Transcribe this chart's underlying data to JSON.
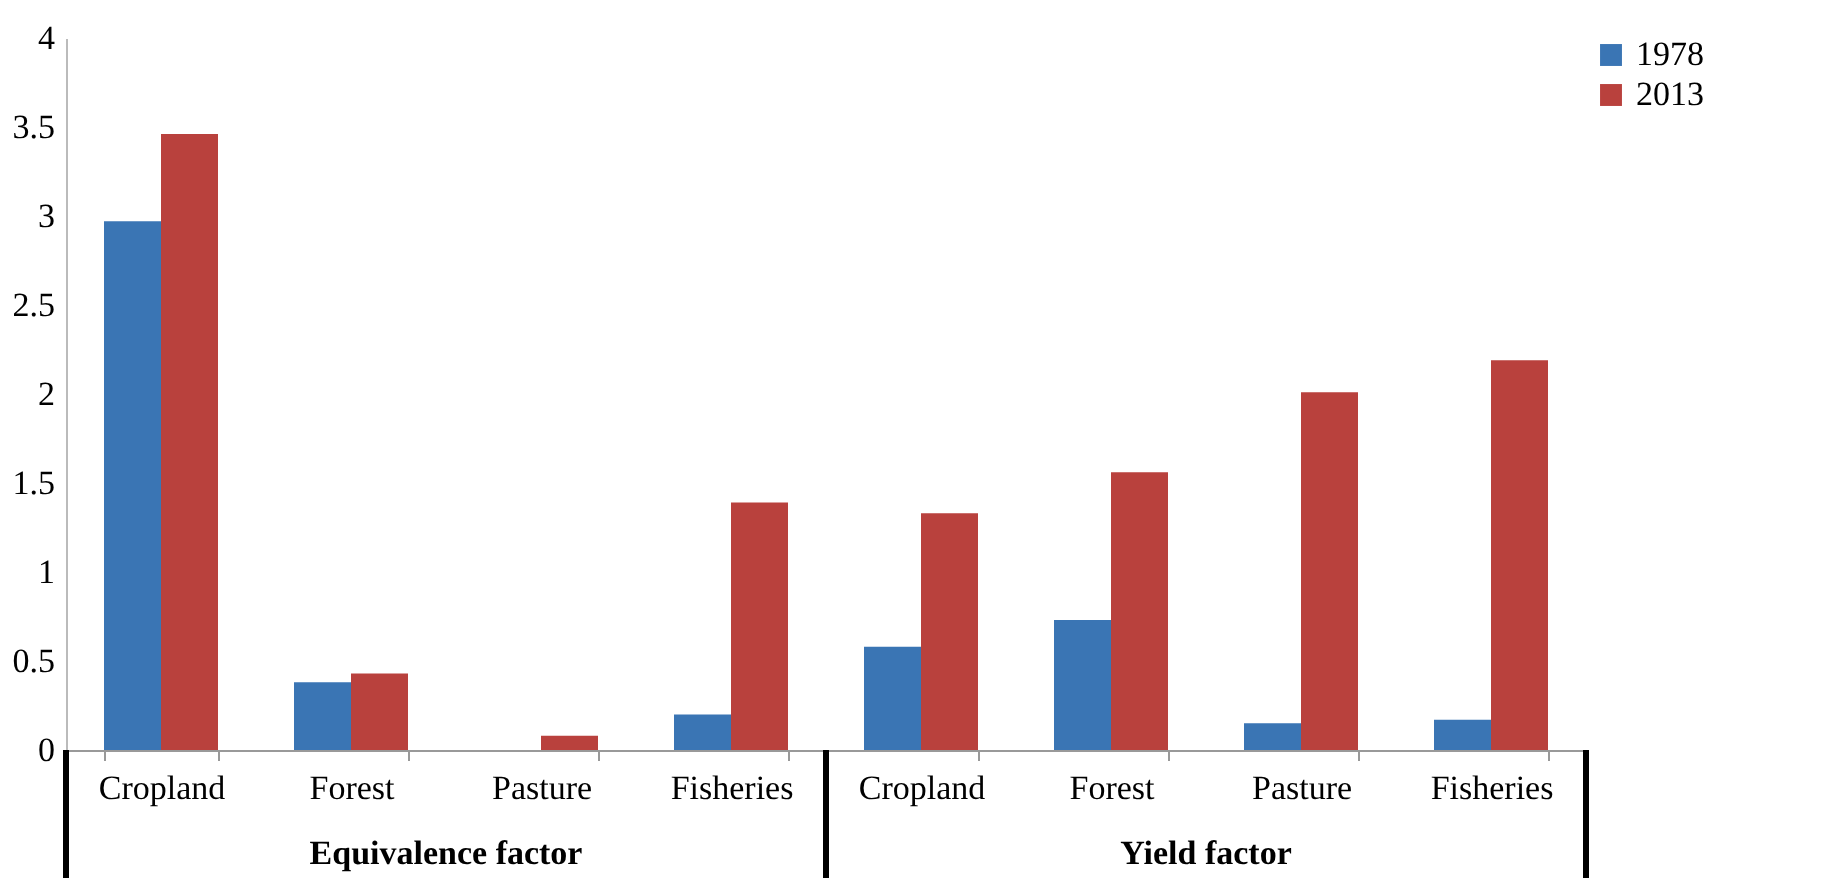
{
  "chart_data": {
    "type": "bar",
    "categories": [
      "Cropland",
      "Forest",
      "Pasture",
      "Fisheries",
      "Cropland",
      "Forest",
      "Pasture",
      "Fisheries"
    ],
    "series": [
      {
        "name": "1978",
        "color": "#3a75b4",
        "values": [
          2.97,
          0.38,
          0,
          0.2,
          0.58,
          0.73,
          0.15,
          0.17
        ]
      },
      {
        "name": "2013",
        "color": "#b9413d",
        "values": [
          3.46,
          0.43,
          0.08,
          1.39,
          1.33,
          1.56,
          2.01,
          2.19
        ]
      }
    ],
    "annotations": [
      "Equivalence factor",
      "Yield factor"
    ],
    "ylim": [
      0,
      4
    ],
    "yticks": [
      0,
      0.5,
      1,
      1.5,
      2,
      2.5,
      3,
      3.5,
      4
    ],
    "grid": false,
    "legend": "right"
  }
}
